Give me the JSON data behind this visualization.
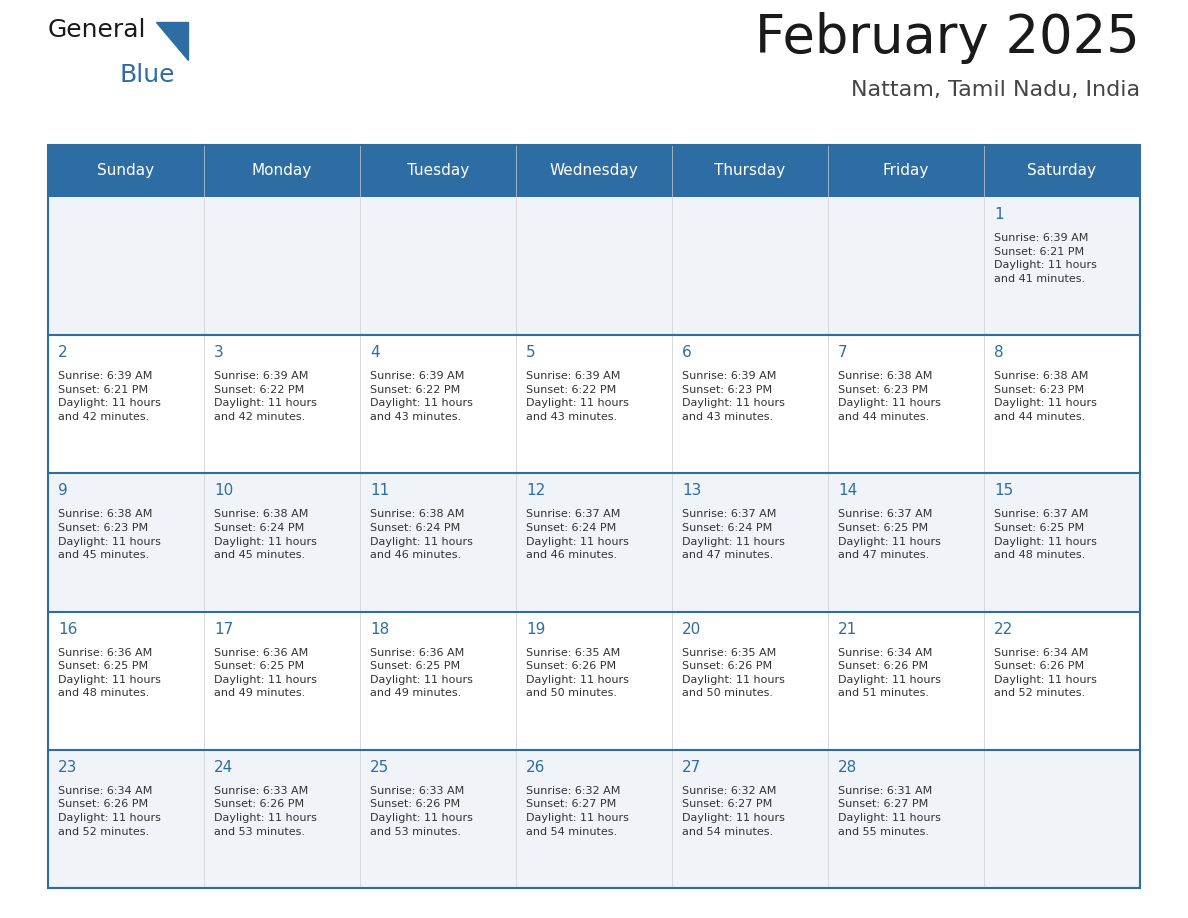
{
  "title": "February 2025",
  "subtitle": "Nattam, Tamil Nadu, India",
  "header_bg": "#2E6DA4",
  "header_text_color": "#FFFFFF",
  "cell_bg_light": "#F0F4F8",
  "cell_bg_white": "#FFFFFF",
  "day_number_color": "#2E6DA4",
  "info_text_color": "#333333",
  "grid_line_color": "#2E6DA4",
  "title_color": "#1a1a1a",
  "subtitle_color": "#444444",
  "days_of_week": [
    "Sunday",
    "Monday",
    "Tuesday",
    "Wednesday",
    "Thursday",
    "Friday",
    "Saturday"
  ],
  "calendar_data": [
    [
      null,
      null,
      null,
      null,
      null,
      null,
      {
        "day": 1,
        "sunrise": "6:39 AM",
        "sunset": "6:21 PM",
        "daylight_line1": "Daylight: 11 hours",
        "daylight_line2": "and 41 minutes."
      }
    ],
    [
      {
        "day": 2,
        "sunrise": "6:39 AM",
        "sunset": "6:21 PM",
        "daylight_line1": "Daylight: 11 hours",
        "daylight_line2": "and 42 minutes."
      },
      {
        "day": 3,
        "sunrise": "6:39 AM",
        "sunset": "6:22 PM",
        "daylight_line1": "Daylight: 11 hours",
        "daylight_line2": "and 42 minutes."
      },
      {
        "day": 4,
        "sunrise": "6:39 AM",
        "sunset": "6:22 PM",
        "daylight_line1": "Daylight: 11 hours",
        "daylight_line2": "and 43 minutes."
      },
      {
        "day": 5,
        "sunrise": "6:39 AM",
        "sunset": "6:22 PM",
        "daylight_line1": "Daylight: 11 hours",
        "daylight_line2": "and 43 minutes."
      },
      {
        "day": 6,
        "sunrise": "6:39 AM",
        "sunset": "6:23 PM",
        "daylight_line1": "Daylight: 11 hours",
        "daylight_line2": "and 43 minutes."
      },
      {
        "day": 7,
        "sunrise": "6:38 AM",
        "sunset": "6:23 PM",
        "daylight_line1": "Daylight: 11 hours",
        "daylight_line2": "and 44 minutes."
      },
      {
        "day": 8,
        "sunrise": "6:38 AM",
        "sunset": "6:23 PM",
        "daylight_line1": "Daylight: 11 hours",
        "daylight_line2": "and 44 minutes."
      }
    ],
    [
      {
        "day": 9,
        "sunrise": "6:38 AM",
        "sunset": "6:23 PM",
        "daylight_line1": "Daylight: 11 hours",
        "daylight_line2": "and 45 minutes."
      },
      {
        "day": 10,
        "sunrise": "6:38 AM",
        "sunset": "6:24 PM",
        "daylight_line1": "Daylight: 11 hours",
        "daylight_line2": "and 45 minutes."
      },
      {
        "day": 11,
        "sunrise": "6:38 AM",
        "sunset": "6:24 PM",
        "daylight_line1": "Daylight: 11 hours",
        "daylight_line2": "and 46 minutes."
      },
      {
        "day": 12,
        "sunrise": "6:37 AM",
        "sunset": "6:24 PM",
        "daylight_line1": "Daylight: 11 hours",
        "daylight_line2": "and 46 minutes."
      },
      {
        "day": 13,
        "sunrise": "6:37 AM",
        "sunset": "6:24 PM",
        "daylight_line1": "Daylight: 11 hours",
        "daylight_line2": "and 47 minutes."
      },
      {
        "day": 14,
        "sunrise": "6:37 AM",
        "sunset": "6:25 PM",
        "daylight_line1": "Daylight: 11 hours",
        "daylight_line2": "and 47 minutes."
      },
      {
        "day": 15,
        "sunrise": "6:37 AM",
        "sunset": "6:25 PM",
        "daylight_line1": "Daylight: 11 hours",
        "daylight_line2": "and 48 minutes."
      }
    ],
    [
      {
        "day": 16,
        "sunrise": "6:36 AM",
        "sunset": "6:25 PM",
        "daylight_line1": "Daylight: 11 hours",
        "daylight_line2": "and 48 minutes."
      },
      {
        "day": 17,
        "sunrise": "6:36 AM",
        "sunset": "6:25 PM",
        "daylight_line1": "Daylight: 11 hours",
        "daylight_line2": "and 49 minutes."
      },
      {
        "day": 18,
        "sunrise": "6:36 AM",
        "sunset": "6:25 PM",
        "daylight_line1": "Daylight: 11 hours",
        "daylight_line2": "and 49 minutes."
      },
      {
        "day": 19,
        "sunrise": "6:35 AM",
        "sunset": "6:26 PM",
        "daylight_line1": "Daylight: 11 hours",
        "daylight_line2": "and 50 minutes."
      },
      {
        "day": 20,
        "sunrise": "6:35 AM",
        "sunset": "6:26 PM",
        "daylight_line1": "Daylight: 11 hours",
        "daylight_line2": "and 50 minutes."
      },
      {
        "day": 21,
        "sunrise": "6:34 AM",
        "sunset": "6:26 PM",
        "daylight_line1": "Daylight: 11 hours",
        "daylight_line2": "and 51 minutes."
      },
      {
        "day": 22,
        "sunrise": "6:34 AM",
        "sunset": "6:26 PM",
        "daylight_line1": "Daylight: 11 hours",
        "daylight_line2": "and 52 minutes."
      }
    ],
    [
      {
        "day": 23,
        "sunrise": "6:34 AM",
        "sunset": "6:26 PM",
        "daylight_line1": "Daylight: 11 hours",
        "daylight_line2": "and 52 minutes."
      },
      {
        "day": 24,
        "sunrise": "6:33 AM",
        "sunset": "6:26 PM",
        "daylight_line1": "Daylight: 11 hours",
        "daylight_line2": "and 53 minutes."
      },
      {
        "day": 25,
        "sunrise": "6:33 AM",
        "sunset": "6:26 PM",
        "daylight_line1": "Daylight: 11 hours",
        "daylight_line2": "and 53 minutes."
      },
      {
        "day": 26,
        "sunrise": "6:32 AM",
        "sunset": "6:27 PM",
        "daylight_line1": "Daylight: 11 hours",
        "daylight_line2": "and 54 minutes."
      },
      {
        "day": 27,
        "sunrise": "6:32 AM",
        "sunset": "6:27 PM",
        "daylight_line1": "Daylight: 11 hours",
        "daylight_line2": "and 54 minutes."
      },
      {
        "day": 28,
        "sunrise": "6:31 AM",
        "sunset": "6:27 PM",
        "daylight_line1": "Daylight: 11 hours",
        "daylight_line2": "and 55 minutes."
      },
      null
    ]
  ]
}
